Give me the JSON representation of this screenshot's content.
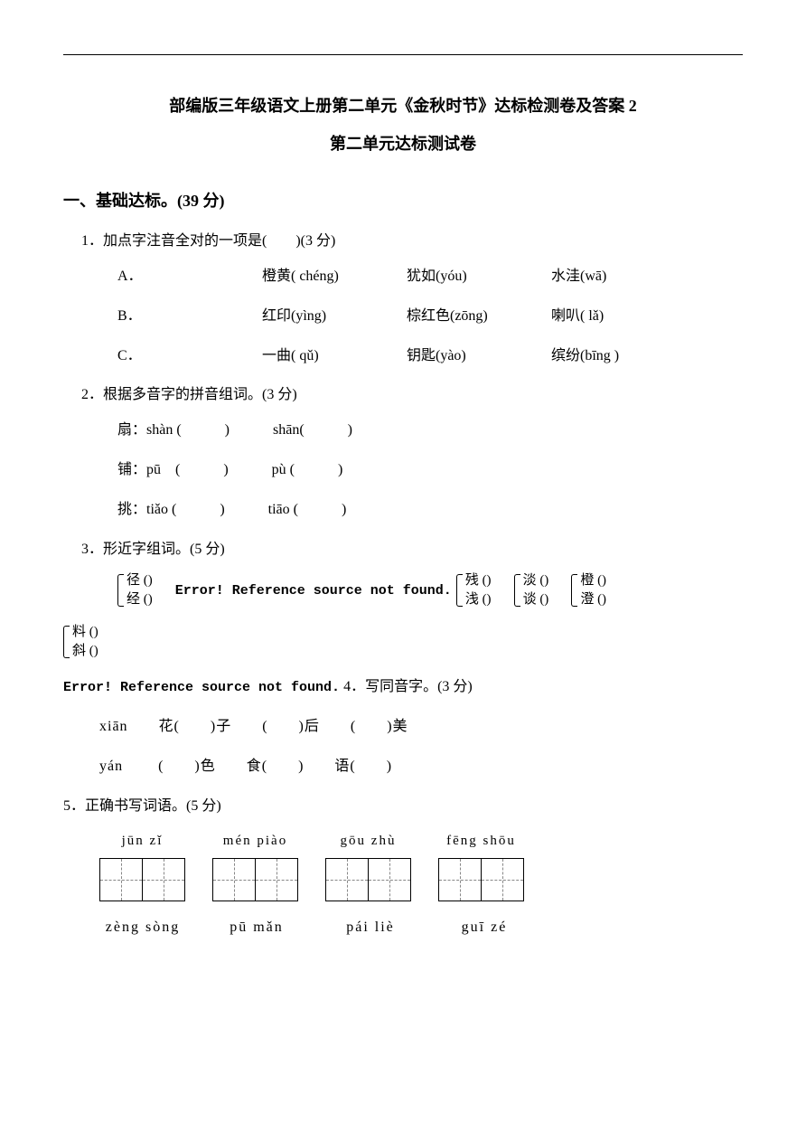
{
  "document": {
    "title_main": "部编版三年级语文上册第二单元《金秋时节》达标检测卷及答案 2",
    "title_sub": "第二单元达标测试卷",
    "section1": {
      "header": "一、基础达标。(39 分)",
      "q1": {
        "text": "1．加点字注音全对的一项是(　　)(3 分)",
        "optA": {
          "label": "A．",
          "item1": "橙黄( chéng)",
          "item2": "犹如(yóu)",
          "item3": "水洼(wā)"
        },
        "optB": {
          "label": "B．",
          "item1": "红印(yìng)",
          "item2": "棕红色(zōng)",
          "item3": "喇叭( lǎ)"
        },
        "optC": {
          "label": "C．",
          "item1": "一曲( qǔ)",
          "item2": "钥匙(yào)",
          "item3": "缤纷(bīng )"
        }
      },
      "q2": {
        "text": "2．根据多音字的拼音组词。(3 分)",
        "line1a": "扇：shàn (　　　)",
        "line1b": "shān(　　　)",
        "line2a": "铺：pū　(　　　)",
        "line2b": "pù (　　　)",
        "line3a": "挑：tiǎo (　　　)",
        "line3b": "tiāo (　　　)"
      },
      "q3": {
        "text": "3．形近字组词。(5 分)",
        "error_text": "Error! Reference source not found.",
        "pairs": [
          {
            "top": "径 ()",
            "bottom": "经 ()"
          },
          {
            "top": "残 ()",
            "bottom": "浅 ()"
          },
          {
            "top": "淡 ()",
            "bottom": "谈 ()"
          },
          {
            "top": "橙 ()",
            "bottom": "澄 ()"
          },
          {
            "top": "料 ()",
            "bottom": "斜 ()"
          }
        ]
      },
      "q4": {
        "error_prefix": "Error! Reference source not found.",
        "text": "4．写同音字。(3 分)",
        "line1": "xiān　　花(　　)子　　(　　)后　　(　　)美",
        "line2": "yán　　 (　　)色　　食(　　)　　语(　　)"
      },
      "q5": {
        "text": "5．正确书写词语。(5 分)",
        "row1": [
          {
            "pinyin": "jūn  zǐ"
          },
          {
            "pinyin": "mén piào"
          },
          {
            "pinyin": "gōu  zhù"
          },
          {
            "pinyin": "fēng  shōu"
          }
        ],
        "row2": [
          {
            "pinyin": "zèng sòng"
          },
          {
            "pinyin": "pū  mǎn"
          },
          {
            "pinyin": "pái  liè"
          },
          {
            "pinyin": "guī  zé"
          }
        ]
      }
    }
  }
}
